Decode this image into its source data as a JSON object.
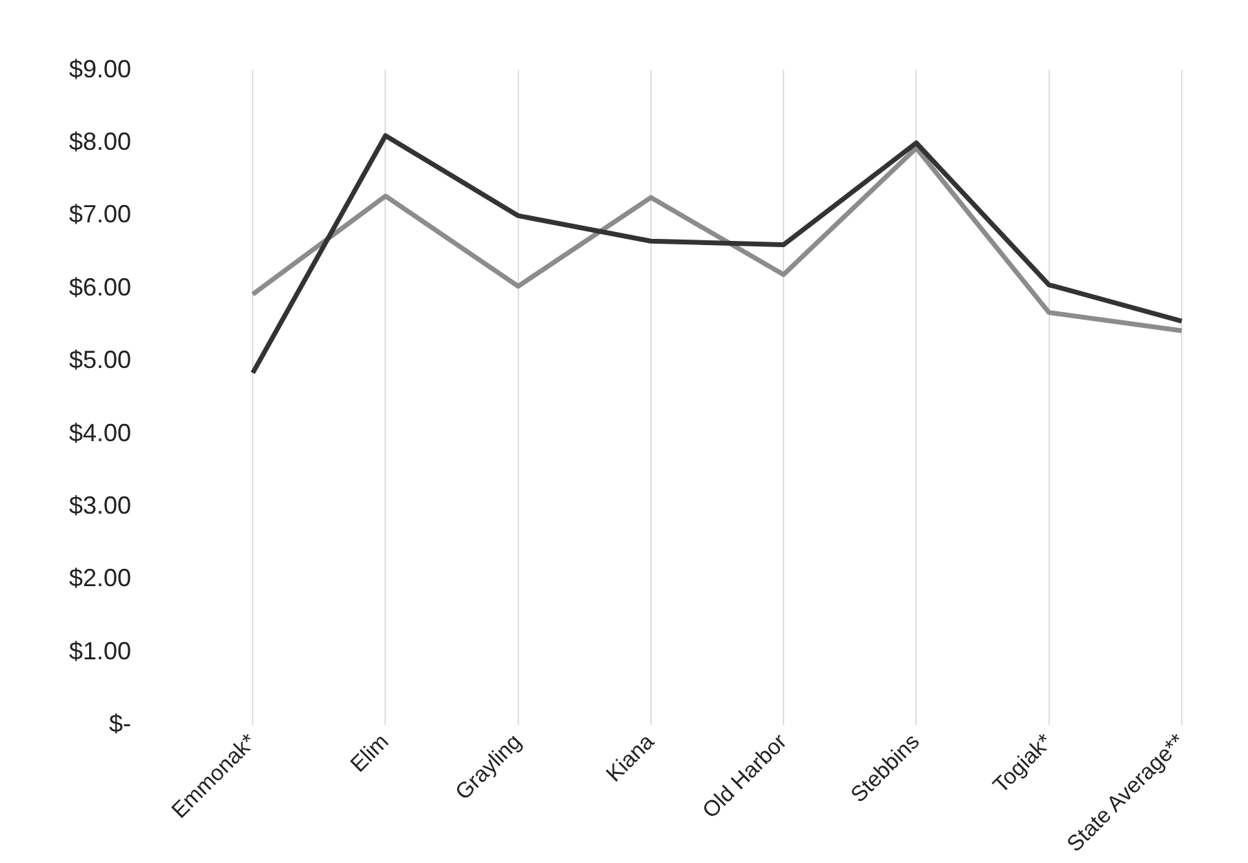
{
  "chart_data": {
    "type": "line",
    "categories": [
      "Emmonak*",
      "Elim",
      "Grayling",
      "Kiana",
      "Old Harbor",
      "Stebbins",
      "Togiak*",
      "State Average**"
    ],
    "series": [
      {
        "color": "#333333",
        "values": [
          4.84,
          8.1,
          7.0,
          6.65,
          6.6,
          8.0,
          6.05,
          5.55
        ]
      },
      {
        "color": "#8c8c8c",
        "values": [
          5.92,
          7.27,
          6.03,
          7.25,
          6.19,
          7.93,
          5.67,
          5.42
        ]
      }
    ],
    "ylim": [
      0,
      9
    ],
    "yticks": [
      {
        "value": 0,
        "label": "$-"
      },
      {
        "value": 1,
        "label": "$1.00"
      },
      {
        "value": 2,
        "label": "$2.00"
      },
      {
        "value": 3,
        "label": "$3.00"
      },
      {
        "value": 4,
        "label": "$4.00"
      },
      {
        "value": 5,
        "label": "$5.00"
      },
      {
        "value": 6,
        "label": "$6.00"
      },
      {
        "value": 7,
        "label": "$7.00"
      },
      {
        "value": 8,
        "label": "$8.00"
      },
      {
        "value": 9,
        "label": "$9.00"
      }
    ],
    "grid": "x",
    "legend": false,
    "marker": "none",
    "line_style": "solid"
  }
}
